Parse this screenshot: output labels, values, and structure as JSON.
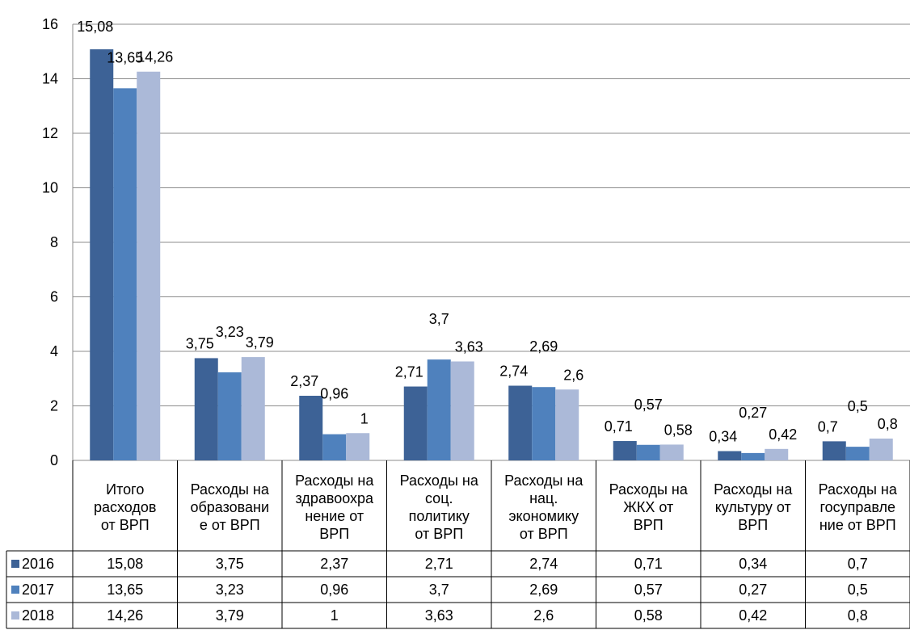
{
  "chart_data": {
    "type": "bar",
    "ylim": [
      0,
      16
    ],
    "yticks": [
      0,
      2,
      4,
      6,
      8,
      10,
      12,
      14,
      16
    ],
    "grid": true,
    "legend": "data-table-left",
    "categories": [
      [
        "Итого",
        "расходов",
        "от ВРП"
      ],
      [
        "Расходы на",
        "образовани",
        "е от ВРП"
      ],
      [
        "Расходы на",
        "здравоохра",
        "нение от",
        "ВРП"
      ],
      [
        "Расходы на",
        "соц.",
        "политику",
        "от ВРП"
      ],
      [
        "Расходы на",
        "нац.",
        "экономику",
        "от ВРП"
      ],
      [
        "Расходы на",
        "ЖКХ от",
        "ВРП"
      ],
      [
        "Расходы на",
        "культуру от",
        "ВРП"
      ],
      [
        "Расходы на",
        "госуправле",
        "ние от ВРП"
      ]
    ],
    "series": [
      {
        "name": "2016",
        "color": "#3d6296",
        "values": [
          15.08,
          3.75,
          2.37,
          2.71,
          2.74,
          0.71,
          0.34,
          0.7
        ],
        "labels": [
          "15,08",
          "3,75",
          "2,37",
          "2,71",
          "2,74",
          "0,71",
          "0,34",
          "0,7"
        ]
      },
      {
        "name": "2017",
        "color": "#4f81bd",
        "values": [
          13.65,
          3.23,
          0.96,
          3.7,
          2.69,
          0.57,
          0.27,
          0.5
        ],
        "labels": [
          "13,65",
          "3,23",
          "0,96",
          "3,7",
          "2,69",
          "0,57",
          "0,27",
          "0,5"
        ]
      },
      {
        "name": "2018",
        "color": "#abb9d8",
        "values": [
          14.26,
          3.79,
          1,
          3.63,
          2.6,
          0.58,
          0.42,
          0.8
        ],
        "labels": [
          "14,26",
          "3,79",
          "1",
          "3,63",
          "2,6",
          "0,58",
          "0,42",
          "0,8"
        ]
      }
    ]
  }
}
